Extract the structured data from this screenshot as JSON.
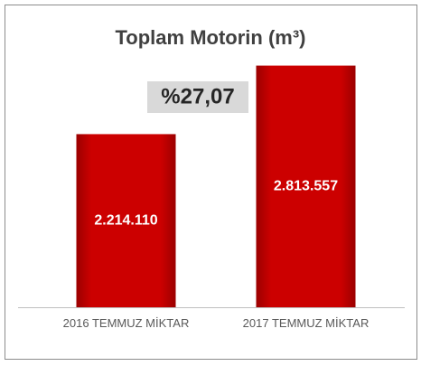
{
  "chart_data": {
    "type": "bar",
    "title": "Toplam Motorin (m³)",
    "annotation": "%27,07",
    "categories": [
      "2016 TEMMUZ MİKTAR",
      "2017 TEMMUZ MİKTAR"
    ],
    "values": [
      2214110,
      2813557
    ],
    "value_labels": [
      "2.214.110",
      "2.813.557"
    ],
    "color": "#c00000",
    "ylim": [
      700000,
      3000000
    ]
  }
}
